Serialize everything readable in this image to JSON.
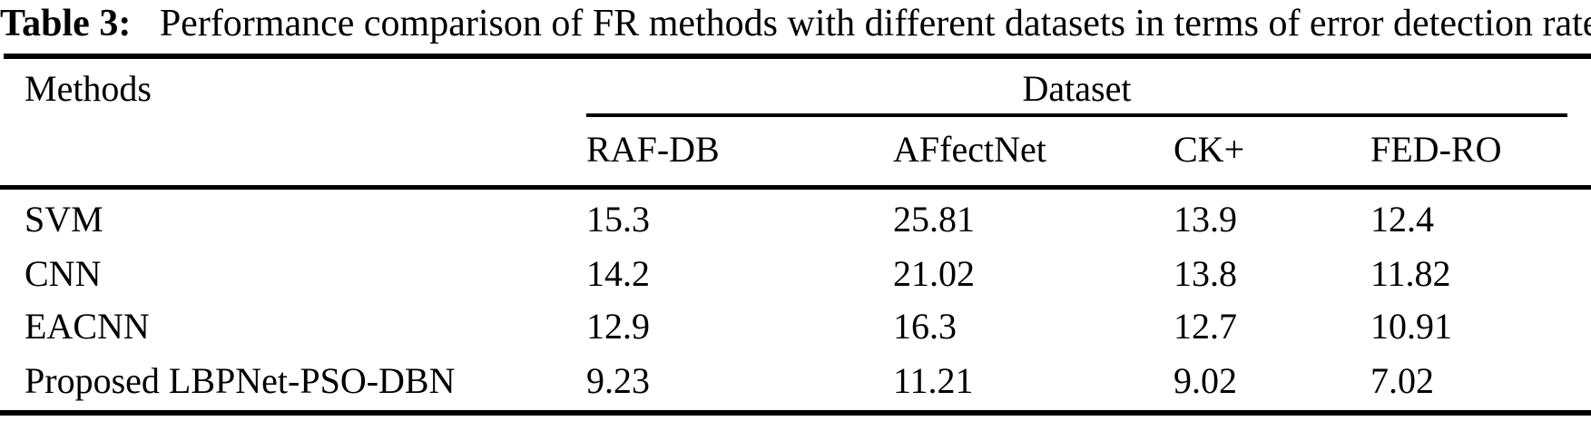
{
  "caption": {
    "label": "Table 3:",
    "text": "Performance comparison of FR methods with different datasets in terms of error detection rate"
  },
  "table": {
    "methods_header": "Methods",
    "dataset_group_header": "Dataset",
    "dataset_columns": [
      "RAF-DB",
      "AFfectNet",
      "CK+",
      "FED-RO"
    ],
    "rows": [
      {
        "method": "SVM",
        "values": [
          "15.3",
          "25.81",
          "13.9",
          "12.4"
        ]
      },
      {
        "method": "CNN",
        "values": [
          "14.2",
          "21.02",
          "13.8",
          "11.82"
        ]
      },
      {
        "method": "EACNN",
        "values": [
          "12.9",
          "16.3",
          "12.7",
          "10.91"
        ]
      },
      {
        "method": "Proposed LBPNet-PSO-DBN",
        "values": [
          "9.23",
          "11.21",
          "9.02",
          "7.02"
        ]
      }
    ]
  },
  "colors": {
    "background": "#ffffff",
    "text": "#000000",
    "rule": "#000000"
  },
  "chart_data": {
    "type": "table",
    "title": "Table 3: Performance comparison of FR methods with different datasets in terms of error detection rate",
    "row_header": "Methods",
    "column_group": "Dataset",
    "categories": [
      "RAF-DB",
      "AFfectNet",
      "CK+",
      "FED-RO"
    ],
    "series": [
      {
        "name": "SVM",
        "values": [
          15.3,
          25.81,
          13.9,
          12.4
        ]
      },
      {
        "name": "CNN",
        "values": [
          14.2,
          21.02,
          13.8,
          11.82
        ]
      },
      {
        "name": "EACNN",
        "values": [
          12.9,
          16.3,
          12.7,
          10.91
        ]
      },
      {
        "name": "Proposed LBPNet-PSO-DBN",
        "values": [
          9.23,
          11.21,
          9.02,
          7.02
        ]
      }
    ]
  }
}
